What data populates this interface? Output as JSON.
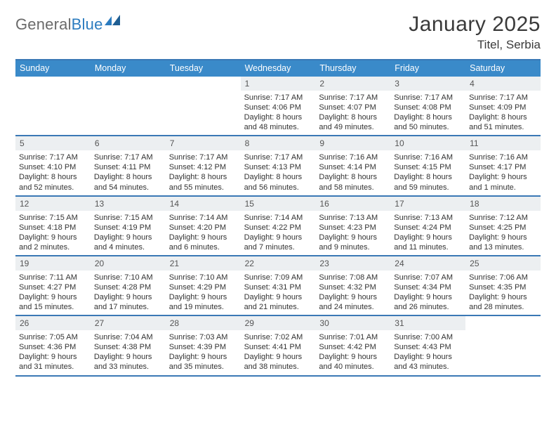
{
  "brand": {
    "part1": "General",
    "part2": "Blue"
  },
  "title": "January 2025",
  "location": "Titel, Serbia",
  "colors": {
    "header_bar": "#3a8ac9",
    "rule": "#3a78b5",
    "daynum_bg": "#eceff1",
    "text": "#333333",
    "brand_gray": "#6a6a6a",
    "brand_blue": "#2b7bbf"
  },
  "day_names": [
    "Sunday",
    "Monday",
    "Tuesday",
    "Wednesday",
    "Thursday",
    "Friday",
    "Saturday"
  ],
  "weeks": [
    [
      {
        "day": null
      },
      {
        "day": null
      },
      {
        "day": null
      },
      {
        "day": 1,
        "sunrise": "7:17 AM",
        "sunset": "4:06 PM",
        "daylight": "8 hours and 48 minutes."
      },
      {
        "day": 2,
        "sunrise": "7:17 AM",
        "sunset": "4:07 PM",
        "daylight": "8 hours and 49 minutes."
      },
      {
        "day": 3,
        "sunrise": "7:17 AM",
        "sunset": "4:08 PM",
        "daylight": "8 hours and 50 minutes."
      },
      {
        "day": 4,
        "sunrise": "7:17 AM",
        "sunset": "4:09 PM",
        "daylight": "8 hours and 51 minutes."
      }
    ],
    [
      {
        "day": 5,
        "sunrise": "7:17 AM",
        "sunset": "4:10 PM",
        "daylight": "8 hours and 52 minutes."
      },
      {
        "day": 6,
        "sunrise": "7:17 AM",
        "sunset": "4:11 PM",
        "daylight": "8 hours and 54 minutes."
      },
      {
        "day": 7,
        "sunrise": "7:17 AM",
        "sunset": "4:12 PM",
        "daylight": "8 hours and 55 minutes."
      },
      {
        "day": 8,
        "sunrise": "7:17 AM",
        "sunset": "4:13 PM",
        "daylight": "8 hours and 56 minutes."
      },
      {
        "day": 9,
        "sunrise": "7:16 AM",
        "sunset": "4:14 PM",
        "daylight": "8 hours and 58 minutes."
      },
      {
        "day": 10,
        "sunrise": "7:16 AM",
        "sunset": "4:15 PM",
        "daylight": "8 hours and 59 minutes."
      },
      {
        "day": 11,
        "sunrise": "7:16 AM",
        "sunset": "4:17 PM",
        "daylight": "9 hours and 1 minute."
      }
    ],
    [
      {
        "day": 12,
        "sunrise": "7:15 AM",
        "sunset": "4:18 PM",
        "daylight": "9 hours and 2 minutes."
      },
      {
        "day": 13,
        "sunrise": "7:15 AM",
        "sunset": "4:19 PM",
        "daylight": "9 hours and 4 minutes."
      },
      {
        "day": 14,
        "sunrise": "7:14 AM",
        "sunset": "4:20 PM",
        "daylight": "9 hours and 6 minutes."
      },
      {
        "day": 15,
        "sunrise": "7:14 AM",
        "sunset": "4:22 PM",
        "daylight": "9 hours and 7 minutes."
      },
      {
        "day": 16,
        "sunrise": "7:13 AM",
        "sunset": "4:23 PM",
        "daylight": "9 hours and 9 minutes."
      },
      {
        "day": 17,
        "sunrise": "7:13 AM",
        "sunset": "4:24 PM",
        "daylight": "9 hours and 11 minutes."
      },
      {
        "day": 18,
        "sunrise": "7:12 AM",
        "sunset": "4:25 PM",
        "daylight": "9 hours and 13 minutes."
      }
    ],
    [
      {
        "day": 19,
        "sunrise": "7:11 AM",
        "sunset": "4:27 PM",
        "daylight": "9 hours and 15 minutes."
      },
      {
        "day": 20,
        "sunrise": "7:10 AM",
        "sunset": "4:28 PM",
        "daylight": "9 hours and 17 minutes."
      },
      {
        "day": 21,
        "sunrise": "7:10 AM",
        "sunset": "4:29 PM",
        "daylight": "9 hours and 19 minutes."
      },
      {
        "day": 22,
        "sunrise": "7:09 AM",
        "sunset": "4:31 PM",
        "daylight": "9 hours and 21 minutes."
      },
      {
        "day": 23,
        "sunrise": "7:08 AM",
        "sunset": "4:32 PM",
        "daylight": "9 hours and 24 minutes."
      },
      {
        "day": 24,
        "sunrise": "7:07 AM",
        "sunset": "4:34 PM",
        "daylight": "9 hours and 26 minutes."
      },
      {
        "day": 25,
        "sunrise": "7:06 AM",
        "sunset": "4:35 PM",
        "daylight": "9 hours and 28 minutes."
      }
    ],
    [
      {
        "day": 26,
        "sunrise": "7:05 AM",
        "sunset": "4:36 PM",
        "daylight": "9 hours and 31 minutes."
      },
      {
        "day": 27,
        "sunrise": "7:04 AM",
        "sunset": "4:38 PM",
        "daylight": "9 hours and 33 minutes."
      },
      {
        "day": 28,
        "sunrise": "7:03 AM",
        "sunset": "4:39 PM",
        "daylight": "9 hours and 35 minutes."
      },
      {
        "day": 29,
        "sunrise": "7:02 AM",
        "sunset": "4:41 PM",
        "daylight": "9 hours and 38 minutes."
      },
      {
        "day": 30,
        "sunrise": "7:01 AM",
        "sunset": "4:42 PM",
        "daylight": "9 hours and 40 minutes."
      },
      {
        "day": 31,
        "sunrise": "7:00 AM",
        "sunset": "4:43 PM",
        "daylight": "9 hours and 43 minutes."
      },
      {
        "day": null
      }
    ]
  ],
  "labels": {
    "sunrise": "Sunrise:",
    "sunset": "Sunset:",
    "daylight": "Daylight:"
  }
}
